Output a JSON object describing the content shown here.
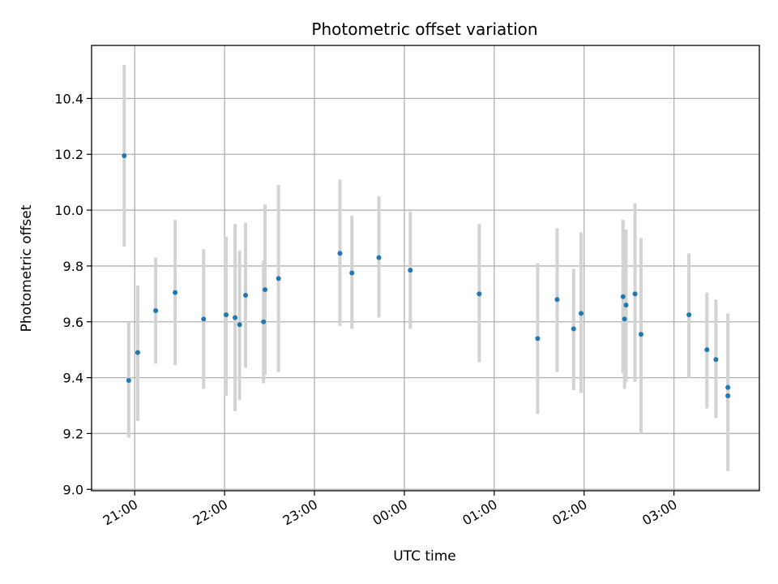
{
  "chart_data": {
    "type": "scatter",
    "title": "Photometric offset variation",
    "xlabel": "UTC time",
    "ylabel": "Photometric offset",
    "x_tick_labels": [
      "21:00",
      "22:00",
      "23:00",
      "00:00",
      "01:00",
      "02:00",
      "03:00"
    ],
    "x_tick_hours": [
      21,
      22,
      23,
      24,
      25,
      26,
      27
    ],
    "xlim_hours": [
      20.52,
      27.95
    ],
    "ylim": [
      8.995,
      10.59
    ],
    "y_ticks": [
      9.0,
      9.2,
      9.4,
      9.6,
      9.8,
      10.0,
      10.2,
      10.4
    ],
    "y_tick_labels": [
      "9.0",
      "9.2",
      "9.4",
      "9.6",
      "9.8",
      "10.0",
      "10.2",
      "10.4"
    ],
    "grid": true,
    "series": [
      {
        "marker_color": "#1f77b4",
        "errorbar_color": "#d3d3d3",
        "points": [
          {
            "t": "20:53",
            "y": 10.195,
            "lo": 9.87,
            "hi": 10.52
          },
          {
            "t": "20:56",
            "y": 9.39,
            "lo": 9.185,
            "hi": 9.6
          },
          {
            "t": "21:02",
            "y": 9.49,
            "lo": 9.245,
            "hi": 9.73
          },
          {
            "t": "21:14",
            "y": 9.64,
            "lo": 9.45,
            "hi": 9.83
          },
          {
            "t": "21:27",
            "y": 9.705,
            "lo": 9.445,
            "hi": 9.965
          },
          {
            "t": "21:46",
            "y": 9.61,
            "lo": 9.36,
            "hi": 9.86
          },
          {
            "t": "22:01",
            "y": 9.625,
            "lo": 9.335,
            "hi": 9.905
          },
          {
            "t": "22:07",
            "y": 9.615,
            "lo": 9.28,
            "hi": 9.95
          },
          {
            "t": "22:10",
            "y": 9.59,
            "lo": 9.32,
            "hi": 9.855
          },
          {
            "t": "22:14",
            "y": 9.695,
            "lo": 9.435,
            "hi": 9.955
          },
          {
            "t": "22:26",
            "y": 9.6,
            "lo": 9.38,
            "hi": 9.82
          },
          {
            "t": "22:27",
            "y": 9.715,
            "lo": 9.41,
            "hi": 10.02
          },
          {
            "t": "22:36",
            "y": 9.755,
            "lo": 9.42,
            "hi": 10.09
          },
          {
            "t": "23:17",
            "y": 9.845,
            "lo": 9.585,
            "hi": 10.11
          },
          {
            "t": "23:25",
            "y": 9.775,
            "lo": 9.575,
            "hi": 9.98
          },
          {
            "t": "23:43",
            "y": 9.83,
            "lo": 9.615,
            "hi": 10.05
          },
          {
            "t": "00:04",
            "y": 9.785,
            "lo": 9.575,
            "hi": 9.995
          },
          {
            "t": "00:50",
            "y": 9.7,
            "lo": 9.455,
            "hi": 9.95
          },
          {
            "t": "01:29",
            "y": 9.54,
            "lo": 9.27,
            "hi": 9.81
          },
          {
            "t": "01:42",
            "y": 9.68,
            "lo": 9.42,
            "hi": 9.935
          },
          {
            "t": "01:53",
            "y": 9.575,
            "lo": 9.355,
            "hi": 9.79
          },
          {
            "t": "01:58",
            "y": 9.63,
            "lo": 9.345,
            "hi": 9.92
          },
          {
            "t": "02:26",
            "y": 9.69,
            "lo": 9.415,
            "hi": 9.965
          },
          {
            "t": "02:27",
            "y": 9.61,
            "lo": 9.36,
            "hi": 9.855
          },
          {
            "t": "02:28",
            "y": 9.66,
            "lo": 9.385,
            "hi": 9.93
          },
          {
            "t": "02:34",
            "y": 9.7,
            "lo": 9.385,
            "hi": 10.025
          },
          {
            "t": "02:38",
            "y": 9.555,
            "lo": 9.2,
            "hi": 9.9
          },
          {
            "t": "03:10",
            "y": 9.625,
            "lo": 9.4,
            "hi": 9.845
          },
          {
            "t": "03:22",
            "y": 9.5,
            "lo": 9.29,
            "hi": 9.705
          },
          {
            "t": "03:28",
            "y": 9.465,
            "lo": 9.255,
            "hi": 9.68
          },
          {
            "t": "03:36",
            "y": 9.365,
            "lo": 9.21,
            "hi": 9.63
          },
          {
            "t": "03:36",
            "y": 9.335,
            "lo": 9.065,
            "hi": 9.6
          }
        ]
      }
    ]
  }
}
